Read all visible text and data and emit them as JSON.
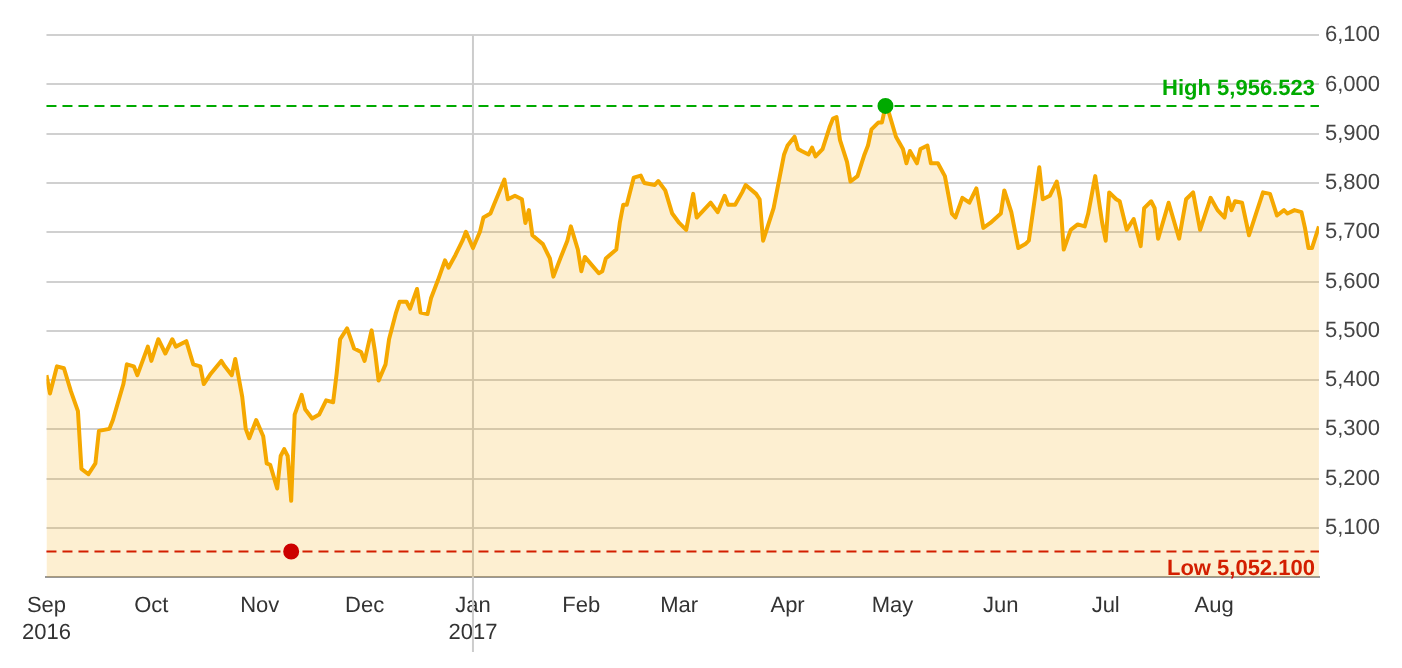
{
  "chart_data": {
    "type": "area",
    "x": [
      "2016-09-01",
      "2016-09-02",
      "2016-09-04",
      "2016-09-06",
      "2016-09-08",
      "2016-09-10",
      "2016-09-11",
      "2016-09-13",
      "2016-09-15",
      "2016-09-16",
      "2016-09-19",
      "2016-09-20",
      "2016-09-23",
      "2016-09-24",
      "2016-09-26",
      "2016-09-27",
      "2016-09-30",
      "2016-10-01",
      "2016-10-03",
      "2016-10-05",
      "2016-10-07",
      "2016-10-08",
      "2016-10-11",
      "2016-10-13",
      "2016-10-15",
      "2016-10-16",
      "2016-10-18",
      "2016-10-21",
      "2016-10-22",
      "2016-10-24",
      "2016-10-25",
      "2016-10-27",
      "2016-10-28",
      "2016-10-29",
      "2016-10-31",
      "2016-11-02",
      "2016-11-03",
      "2016-11-04",
      "2016-11-06",
      "2016-11-07",
      "2016-11-08",
      "2016-11-09",
      "2016-11-10",
      "2016-11-11",
      "2016-11-13",
      "2016-11-14",
      "2016-11-16",
      "2016-11-18",
      "2016-11-20",
      "2016-11-22",
      "2016-11-23",
      "2016-11-24",
      "2016-11-26",
      "2016-11-28",
      "2016-11-30",
      "2016-12-01",
      "2016-12-03",
      "2016-12-04",
      "2016-12-05",
      "2016-12-07",
      "2016-12-08",
      "2016-12-10",
      "2016-12-11",
      "2016-12-13",
      "2016-12-14",
      "2016-12-16",
      "2016-12-17",
      "2016-12-19",
      "2016-12-20",
      "2016-12-22",
      "2016-12-24",
      "2016-12-25",
      "2016-12-27",
      "2016-12-29",
      "2016-12-30",
      "2017-01-01",
      "2017-01-03",
      "2017-01-04",
      "2017-01-06",
      "2017-01-07",
      "2017-01-10",
      "2017-01-11",
      "2017-01-13",
      "2017-01-15",
      "2017-01-16",
      "2017-01-17",
      "2017-01-18",
      "2017-01-21",
      "2017-01-23",
      "2017-01-24",
      "2017-01-26",
      "2017-01-28",
      "2017-01-29",
      "2017-01-31",
      "2017-02-01",
      "2017-02-02",
      "2017-02-06",
      "2017-02-07",
      "2017-02-08",
      "2017-02-11",
      "2017-02-12",
      "2017-02-13",
      "2017-02-14",
      "2017-02-16",
      "2017-02-18",
      "2017-02-19",
      "2017-02-22",
      "2017-02-23",
      "2017-02-25",
      "2017-02-27",
      "2017-03-01",
      "2017-03-03",
      "2017-03-05",
      "2017-03-06",
      "2017-03-08",
      "2017-03-10",
      "2017-03-12",
      "2017-03-14",
      "2017-03-15",
      "2017-03-17",
      "2017-03-19",
      "2017-03-20",
      "2017-03-23",
      "2017-03-24",
      "2017-03-25",
      "2017-03-26",
      "2017-03-28",
      "2017-03-31",
      "2017-04-01",
      "2017-04-03",
      "2017-04-04",
      "2017-04-05",
      "2017-04-07",
      "2017-04-08",
      "2017-04-09",
      "2017-04-11",
      "2017-04-13",
      "2017-04-14",
      "2017-04-15",
      "2017-04-16",
      "2017-04-18",
      "2017-04-19",
      "2017-04-21",
      "2017-04-23",
      "2017-04-24",
      "2017-04-25",
      "2017-04-27",
      "2017-04-28",
      "2017-04-29",
      "2017-04-30",
      "2017-05-02",
      "2017-05-04",
      "2017-05-05",
      "2017-05-06",
      "2017-05-08",
      "2017-05-09",
      "2017-05-11",
      "2017-05-12",
      "2017-05-14",
      "2017-05-16",
      "2017-05-18",
      "2017-05-19",
      "2017-05-21",
      "2017-05-23",
      "2017-05-25",
      "2017-05-27",
      "2017-05-29",
      "2017-06-01",
      "2017-06-02",
      "2017-06-04",
      "2017-06-06",
      "2017-06-08",
      "2017-06-09",
      "2017-06-12",
      "2017-06-13",
      "2017-06-15",
      "2017-06-17",
      "2017-06-18",
      "2017-06-19",
      "2017-06-21",
      "2017-06-23",
      "2017-06-25",
      "2017-06-26",
      "2017-06-28",
      "2017-06-30",
      "2017-07-01",
      "2017-07-02",
      "2017-07-04",
      "2017-07-05",
      "2017-07-07",
      "2017-07-09",
      "2017-07-11",
      "2017-07-12",
      "2017-07-14",
      "2017-07-15",
      "2017-07-16",
      "2017-07-19",
      "2017-07-22",
      "2017-07-24",
      "2017-07-26",
      "2017-07-28",
      "2017-07-31",
      "2017-08-02",
      "2017-08-04",
      "2017-08-05",
      "2017-08-06",
      "2017-08-07",
      "2017-08-09",
      "2017-08-11",
      "2017-08-13",
      "2017-08-15",
      "2017-08-17",
      "2017-08-19",
      "2017-08-21",
      "2017-08-22",
      "2017-08-24",
      "2017-08-26",
      "2017-08-27",
      "2017-08-28",
      "2017-08-29",
      "2017-08-31"
    ],
    "series": [
      {
        "color": "#f5a800",
        "values": [
          5410,
          5373,
          5428,
          5424,
          5377,
          5337,
          5220,
          5209,
          5231,
          5297,
          5301,
          5319,
          5392,
          5432,
          5428,
          5410,
          5468,
          5439,
          5483,
          5454,
          5483,
          5468,
          5479,
          5432,
          5428,
          5392,
          5413,
          5439,
          5428,
          5410,
          5443,
          5366,
          5301,
          5282,
          5319,
          5286,
          5231,
          5228,
          5180,
          5246,
          5260,
          5246,
          5155,
          5330,
          5370,
          5341,
          5322,
          5330,
          5359,
          5355,
          5413,
          5483,
          5505,
          5464,
          5457,
          5439,
          5501,
          5457,
          5399,
          5432,
          5483,
          5537,
          5559,
          5559,
          5545,
          5585,
          5537,
          5534,
          5566,
          5603,
          5643,
          5628,
          5654,
          5683,
          5701,
          5668,
          5701,
          5730,
          5738,
          5756,
          5807,
          5767,
          5774,
          5767,
          5719,
          5745,
          5694,
          5676,
          5647,
          5610,
          5647,
          5683,
          5712,
          5665,
          5621,
          5650,
          5617,
          5621,
          5647,
          5665,
          5719,
          5756,
          5756,
          5811,
          5815,
          5800,
          5796,
          5804,
          5785,
          5738,
          5719,
          5705,
          5778,
          5730,
          5745,
          5760,
          5741,
          5774,
          5756,
          5756,
          5781,
          5796,
          5778,
          5767,
          5683,
          5705,
          5749,
          5858,
          5876,
          5894,
          5869,
          5865,
          5858,
          5872,
          5854,
          5869,
          5913,
          5931,
          5934,
          5887,
          5843,
          5803,
          5814,
          5858,
          5876,
          5909,
          5923,
          5923,
          5956,
          5942,
          5894,
          5869,
          5840,
          5865,
          5840,
          5869,
          5876,
          5840,
          5840,
          5814,
          5738,
          5730,
          5770,
          5760,
          5789,
          5709,
          5719,
          5738,
          5785,
          5741,
          5668,
          5676,
          5683,
          5832,
          5767,
          5774,
          5803,
          5767,
          5665,
          5705,
          5716,
          5712,
          5738,
          5814,
          5719,
          5683,
          5781,
          5767,
          5763,
          5705,
          5727,
          5672,
          5749,
          5763,
          5749,
          5687,
          5760,
          5687,
          5767,
          5781,
          5705,
          5770,
          5745,
          5730,
          5770,
          5745,
          5763,
          5760,
          5694,
          5738,
          5781,
          5778,
          5734,
          5745,
          5738,
          5745,
          5741,
          5709,
          5668,
          5668,
          5712
        ]
      },
      {
        "type": "scatter",
        "x": [
          "2016-11-10",
          "2017-04-29"
        ],
        "colors": [
          "#cc0000",
          "#00aa00"
        ],
        "values": [
          5052.1,
          5956.523
        ]
      }
    ],
    "xlim": [
      "2016-09-01",
      "2017-08-31"
    ],
    "xticks": [
      {
        "value": "2016-09-01",
        "label": "Sep\n2016"
      },
      {
        "value": "2016-10-01",
        "label": "Oct"
      },
      {
        "value": "2016-11-01",
        "label": "Nov"
      },
      {
        "value": "2016-12-01",
        "label": "Dec"
      },
      {
        "value": "2017-01-01",
        "label": "Jan\n2017"
      },
      {
        "value": "2017-02-01",
        "label": "Feb"
      },
      {
        "value": "2017-03-01",
        "label": "Mar"
      },
      {
        "value": "2017-04-01",
        "label": "Apr"
      },
      {
        "value": "2017-05-01",
        "label": "May"
      },
      {
        "value": "2017-06-01",
        "label": "Jun"
      },
      {
        "value": "2017-07-01",
        "label": "Jul"
      },
      {
        "value": "2017-08-01",
        "label": "Aug"
      }
    ],
    "ylim": [
      5000,
      6100
    ],
    "yticks": [
      {
        "value": 5100,
        "label": "5,100"
      },
      {
        "value": 5200,
        "label": "5,200"
      },
      {
        "value": 5300,
        "label": "5,300"
      },
      {
        "value": 5400,
        "label": "5,400"
      },
      {
        "value": 5500,
        "label": "5,500"
      },
      {
        "value": 5600,
        "label": "5,600"
      },
      {
        "value": 5700,
        "label": "5,700"
      },
      {
        "value": 5800,
        "label": "5,800"
      },
      {
        "value": 5900,
        "label": "5,900"
      },
      {
        "value": 6000,
        "label": "6,000"
      },
      {
        "value": 6100,
        "label": "6,100"
      }
    ],
    "grid": "y",
    "legend": false,
    "ref_lines": [
      {
        "axis": "y",
        "value": 5956.523,
        "label": "High 5,956.523",
        "color": "#00aa00",
        "line_style": "dashed"
      },
      {
        "axis": "y",
        "value": 5052.1,
        "label": "Low 5,052.100",
        "color": "#cc0000",
        "line_style": "dashed"
      },
      {
        "axis": "x",
        "value": "2017-01-01",
        "color": "#cccccc",
        "line_style": "solid"
      }
    ]
  }
}
